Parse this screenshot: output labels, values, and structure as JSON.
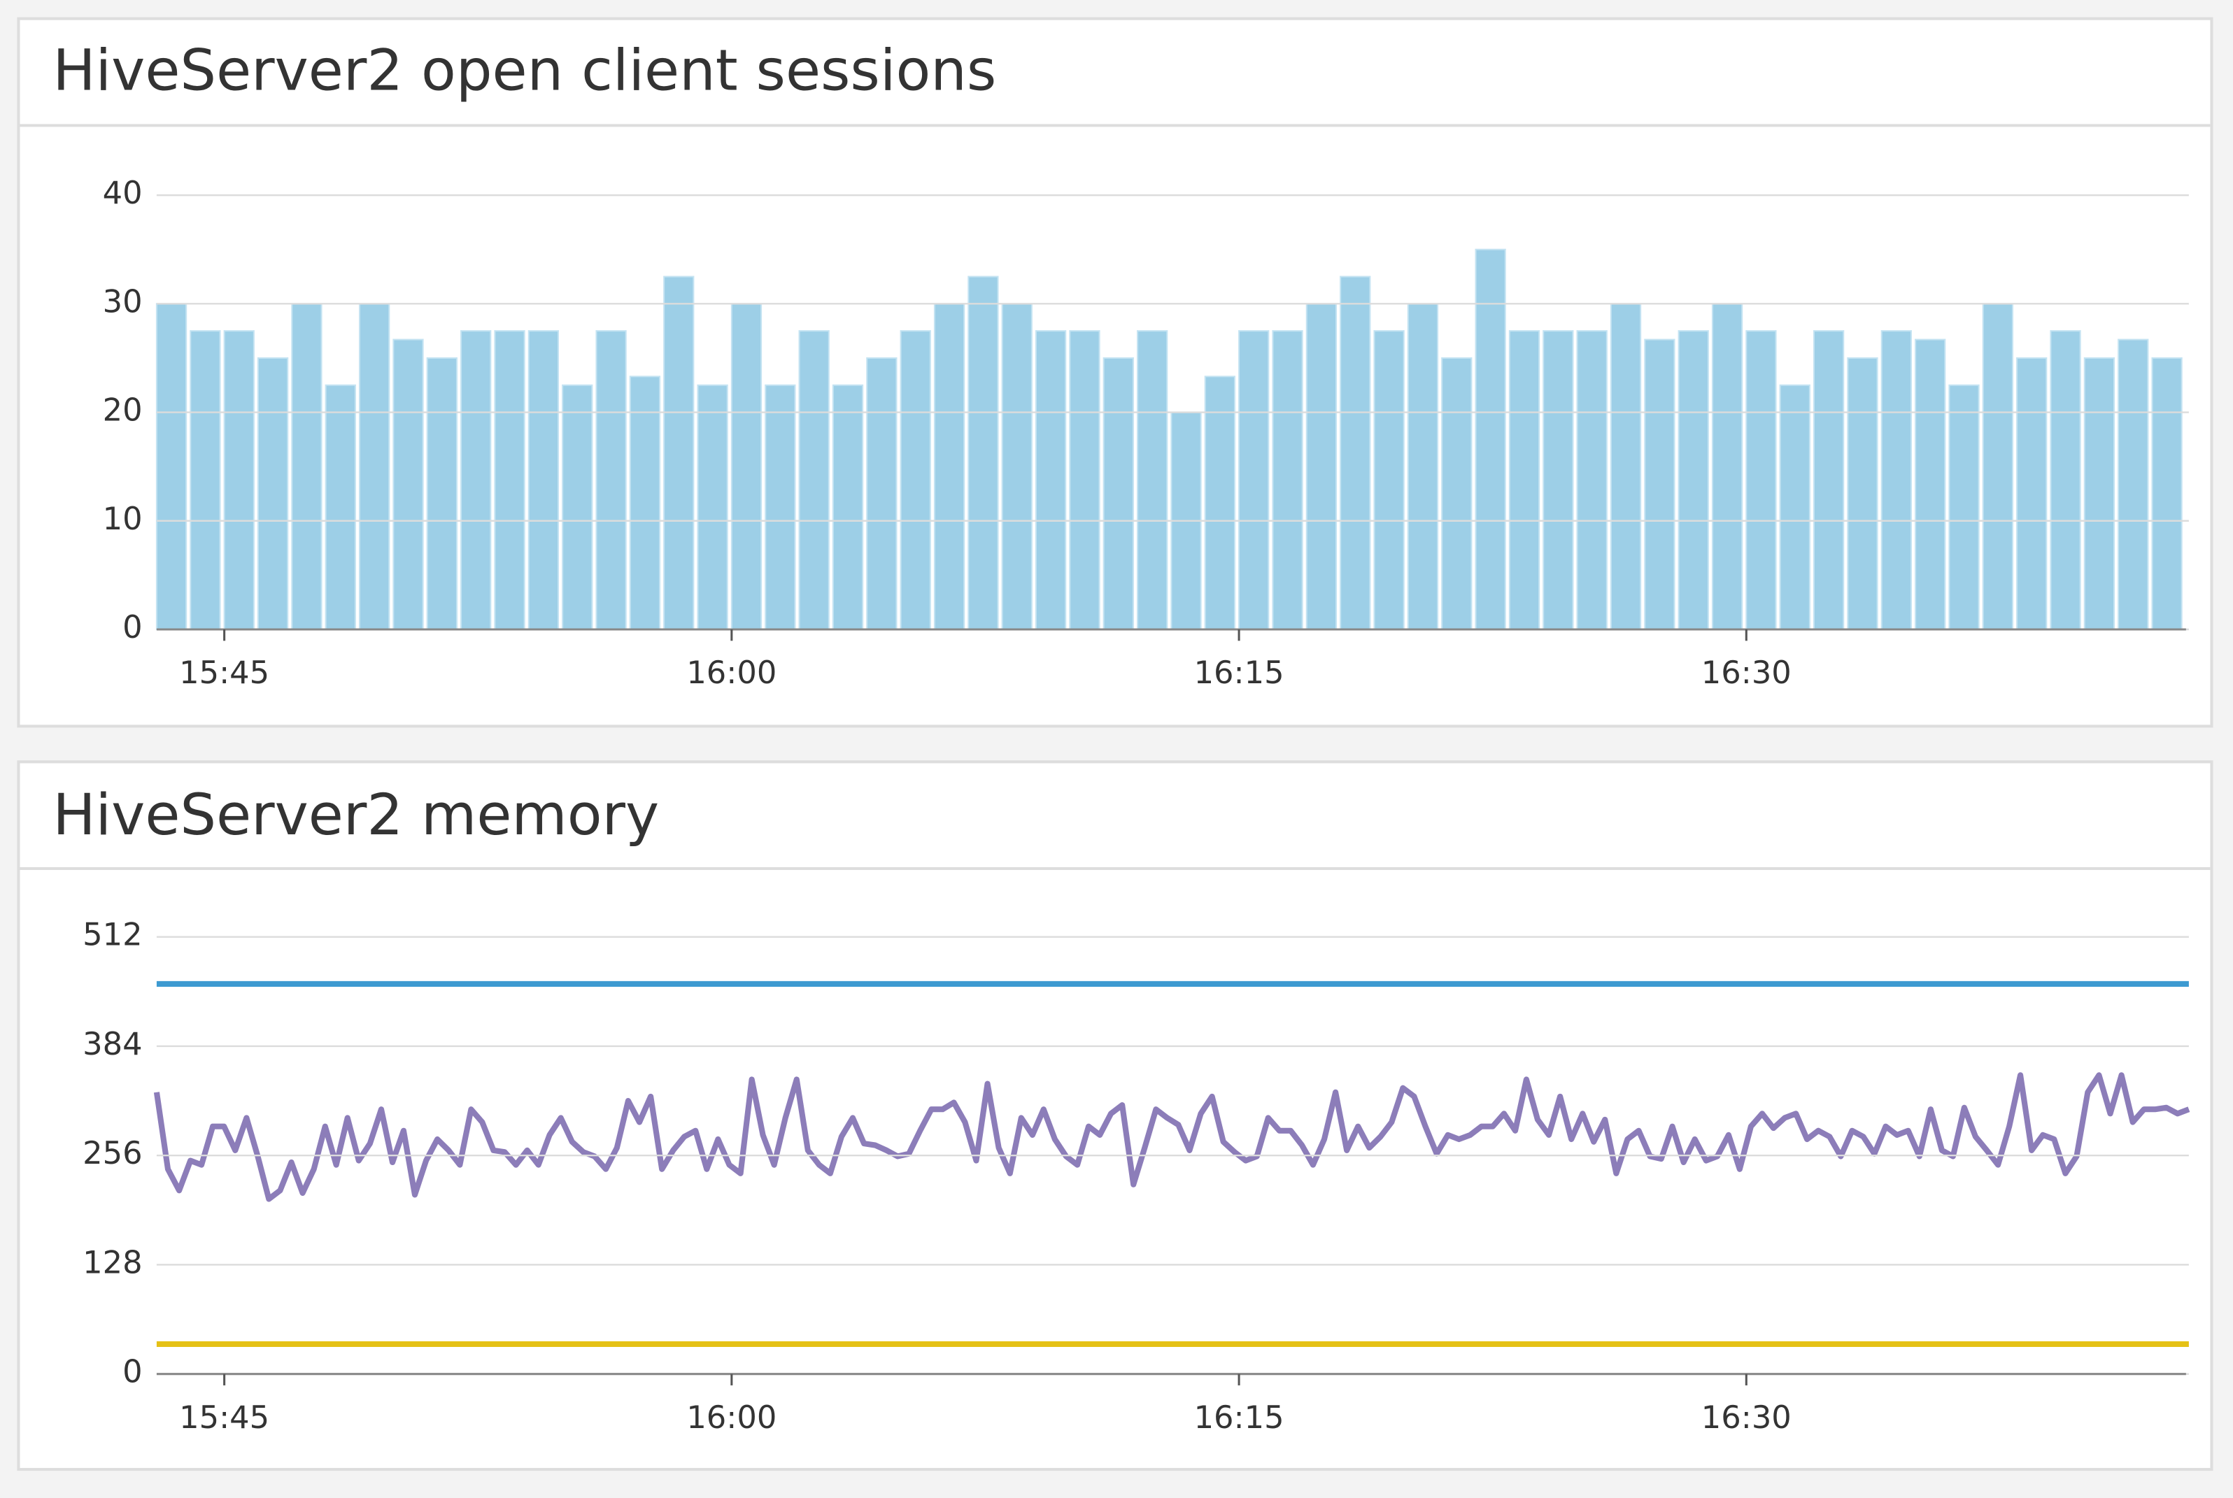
{
  "chart_data": [
    {
      "type": "bar",
      "title": "HiveServer2 open client sessions",
      "color": "#9dcfe7",
      "x": [
        "15:43",
        "15:44",
        "15:45",
        "15:46",
        "15:47",
        "15:48",
        "15:49",
        "15:50",
        "15:51",
        "15:52",
        "15:53",
        "15:54",
        "15:55",
        "15:56",
        "15:57",
        "15:58",
        "15:59",
        "16:00",
        "16:01",
        "16:02",
        "16:03",
        "16:04",
        "16:05",
        "16:06",
        "16:07",
        "16:08",
        "16:09",
        "16:10",
        "16:11",
        "16:12",
        "16:13",
        "16:14",
        "16:15",
        "16:16",
        "16:17",
        "16:18",
        "16:19",
        "16:20",
        "16:21",
        "16:22",
        "16:23",
        "16:24",
        "16:25",
        "16:26",
        "16:27",
        "16:28",
        "16:29",
        "16:30",
        "16:31",
        "16:32",
        "16:33",
        "16:34",
        "16:35",
        "16:36",
        "16:37",
        "16:38",
        "16:39",
        "16:40",
        "16:41",
        "16:42"
      ],
      "values": [
        30,
        27.5,
        27.5,
        25,
        30,
        22.5,
        30,
        26.7,
        25,
        27.5,
        27.5,
        27.5,
        22.5,
        27.5,
        23.3,
        32.5,
        22.5,
        30,
        22.5,
        27.5,
        22.5,
        25,
        27.5,
        30,
        32.5,
        30,
        27.5,
        27.5,
        25,
        27.5,
        20,
        23.3,
        27.5,
        27.5,
        30,
        32.5,
        27.5,
        30,
        25,
        35,
        27.5,
        27.5,
        27.5,
        30,
        26.7,
        27.5,
        30,
        27.5,
        22.5,
        27.5,
        25,
        27.5,
        26.7,
        22.5,
        30,
        25,
        27.5,
        25,
        26.7,
        25
      ],
      "xlim": [
        "15:43",
        "16:43"
      ],
      "xticks": [
        "15:45",
        "16:00",
        "16:15",
        "16:30"
      ],
      "ylim": [
        0,
        40
      ],
      "yticks": [
        0,
        10,
        20,
        30,
        40
      ],
      "grid": true
    },
    {
      "type": "line",
      "title": "HiveServer2 memory",
      "series": [
        {
          "color": "#3d9ad1",
          "values": [
            457,
            457
          ]
        },
        {
          "color": "#8c7db9",
          "values": [
            330,
            240,
            215,
            250,
            245,
            290,
            290,
            262,
            300,
            255,
            205,
            215,
            248,
            212,
            240,
            290,
            245,
            300,
            250,
            270,
            310,
            248,
            285,
            210,
            250,
            275,
            262,
            245,
            310,
            295,
            262,
            260,
            245,
            262,
            245,
            280,
            300,
            272,
            260,
            255,
            240,
            265,
            320,
            295,
            325,
            240,
            262,
            278,
            285,
            240,
            275,
            245,
            235,
            345,
            280,
            245,
            300,
            345,
            262,
            245,
            235,
            278,
            300,
            270,
            268,
            262,
            255,
            258,
            285,
            310,
            310,
            318,
            295,
            250,
            340,
            265,
            235,
            300,
            280,
            310,
            275,
            255,
            245,
            290,
            280,
            305,
            315,
            222,
            265,
            310,
            300,
            292,
            262,
            305,
            325,
            272,
            260,
            250,
            255,
            300,
            285,
            285,
            268,
            245,
            275,
            330,
            262,
            290,
            265,
            278,
            295,
            335,
            325,
            290,
            258,
            280,
            275,
            280,
            290,
            290,
            305,
            285,
            345,
            298,
            280,
            325,
            275,
            305,
            272,
            298,
            235,
            275,
            285,
            255,
            252,
            290,
            248,
            275,
            250,
            255,
            280,
            240,
            290,
            305,
            288,
            300,
            305,
            275,
            285,
            278,
            255,
            285,
            278,
            258,
            290,
            280,
            285,
            255,
            310,
            262,
            255,
            312,
            278,
            262,
            245,
            290,
            350,
            262,
            280,
            275,
            235,
            255,
            330,
            350,
            305,
            350,
            295,
            310,
            310,
            312,
            305,
            310
          ]
        },
        {
          "color": "#e5c116",
          "values": [
            35,
            35
          ]
        }
      ],
      "xlim": [
        "15:43",
        "16:43"
      ],
      "xticks": [
        "15:45",
        "16:00",
        "16:15",
        "16:30"
      ],
      "ylim": [
        0,
        550
      ],
      "yticks": [
        0,
        128,
        256,
        384,
        512
      ],
      "grid": true
    }
  ]
}
